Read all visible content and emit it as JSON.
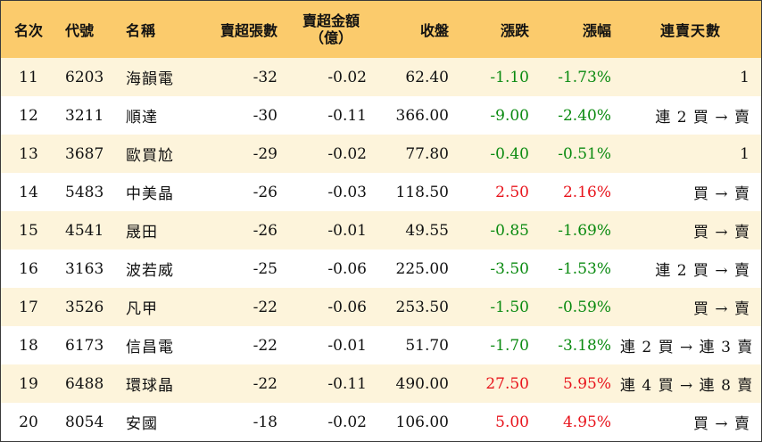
{
  "header": {
    "rank": "名次",
    "code": "代號",
    "name": "名稱",
    "sell_lots": "賣超張數",
    "sell_amount_line1": "賣超金額",
    "sell_amount_line2": "（億）",
    "close": "收盤",
    "change": "漲跌",
    "pct": "漲幅",
    "streak": "連賣天數"
  },
  "colors": {
    "header_bg": "#fbcb6c",
    "alt_row_bg": "#fdf4db",
    "up": "#e8141c",
    "down": "#0a8a10"
  },
  "rows": [
    {
      "rank": "11",
      "code": "6203",
      "name": "海韻電",
      "lots": "-32",
      "amount": "-0.02",
      "close": "62.40",
      "change": "-1.10",
      "pct": "-1.73%",
      "dir": "down",
      "streak": "1"
    },
    {
      "rank": "12",
      "code": "3211",
      "name": "順達",
      "lots": "-30",
      "amount": "-0.11",
      "close": "366.00",
      "change": "-9.00",
      "pct": "-2.40%",
      "dir": "down",
      "streak": "連 2 買 → 賣"
    },
    {
      "rank": "13",
      "code": "3687",
      "name": "歐買尬",
      "lots": "-29",
      "amount": "-0.02",
      "close": "77.80",
      "change": "-0.40",
      "pct": "-0.51%",
      "dir": "down",
      "streak": "1"
    },
    {
      "rank": "14",
      "code": "5483",
      "name": "中美晶",
      "lots": "-26",
      "amount": "-0.03",
      "close": "118.50",
      "change": "2.50",
      "pct": "2.16%",
      "dir": "up",
      "streak": "買 → 賣"
    },
    {
      "rank": "15",
      "code": "4541",
      "name": "晟田",
      "lots": "-26",
      "amount": "-0.01",
      "close": "49.55",
      "change": "-0.85",
      "pct": "-1.69%",
      "dir": "down",
      "streak": "買 → 賣"
    },
    {
      "rank": "16",
      "code": "3163",
      "name": "波若威",
      "lots": "-25",
      "amount": "-0.06",
      "close": "225.00",
      "change": "-3.50",
      "pct": "-1.53%",
      "dir": "down",
      "streak": "連 2 買 → 賣"
    },
    {
      "rank": "17",
      "code": "3526",
      "name": "凡甲",
      "lots": "-22",
      "amount": "-0.06",
      "close": "253.50",
      "change": "-1.50",
      "pct": "-0.59%",
      "dir": "down",
      "streak": "買 → 賣"
    },
    {
      "rank": "18",
      "code": "6173",
      "name": "信昌電",
      "lots": "-22",
      "amount": "-0.01",
      "close": "51.70",
      "change": "-1.70",
      "pct": "-3.18%",
      "dir": "down",
      "streak": "連 2 買 → 連 3 賣"
    },
    {
      "rank": "19",
      "code": "6488",
      "name": "環球晶",
      "lots": "-22",
      "amount": "-0.11",
      "close": "490.00",
      "change": "27.50",
      "pct": "5.95%",
      "dir": "up",
      "streak": "連 4 買 → 連 8 賣"
    },
    {
      "rank": "20",
      "code": "8054",
      "name": "安國",
      "lots": "-18",
      "amount": "-0.02",
      "close": "106.00",
      "change": "5.00",
      "pct": "4.95%",
      "dir": "up",
      "streak": "買 → 賣"
    }
  ]
}
